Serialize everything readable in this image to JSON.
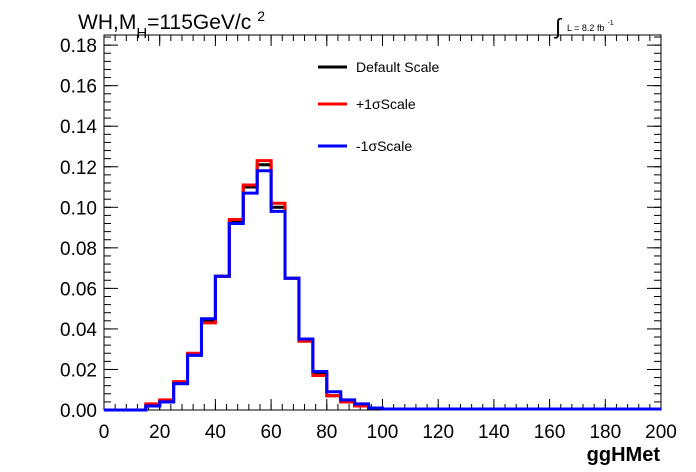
{
  "chart_data": {
    "type": "line",
    "title": {
      "main": "WH,M",
      "subscript": "H",
      "rest": "=115GeV/c",
      "superscript": "2"
    },
    "luminosity": {
      "integral_symbol": "∫",
      "text": "L = 8.2 fb",
      "exponent": "-1"
    },
    "xlabel": "ggHMet",
    "xlim": [
      0,
      200
    ],
    "ylim": [
      0,
      0.185
    ],
    "x_ticks": [
      "0",
      "20",
      "40",
      "60",
      "80",
      "100",
      "120",
      "140",
      "160",
      "180",
      "200"
    ],
    "y_ticks": [
      "0.00",
      "0.02",
      "0.04",
      "0.06",
      "0.08",
      "0.10",
      "0.12",
      "0.14",
      "0.16",
      "0.18"
    ],
    "bin_edges": [
      0,
      5,
      10,
      15,
      20,
      25,
      30,
      35,
      40,
      45,
      50,
      55,
      60,
      65,
      70,
      75,
      80,
      85,
      90,
      95,
      100,
      200
    ],
    "legend_position": "top-right",
    "series": [
      {
        "name": "Default Scale",
        "color": "#000000",
        "values": [
          0,
          0,
          0,
          0.002,
          0.004,
          0.013,
          0.027,
          0.044,
          0.066,
          0.093,
          0.11,
          0.121,
          0.1,
          0.065,
          0.034,
          0.018,
          0.007,
          0.004,
          0.002,
          0.001,
          0.0005
        ]
      },
      {
        "name": "+1σScale",
        "color": "#ff0000",
        "values": [
          0,
          0,
          0,
          0.003,
          0.005,
          0.014,
          0.028,
          0.043,
          0.066,
          0.094,
          0.111,
          0.123,
          0.102,
          0.065,
          0.034,
          0.017,
          0.007,
          0.004,
          0.002,
          0.001,
          0.0005
        ]
      },
      {
        "name": "-1σScale",
        "color": "#0000ff",
        "values": [
          0,
          0,
          0,
          0.002,
          0.004,
          0.013,
          0.027,
          0.045,
          0.066,
          0.092,
          0.107,
          0.118,
          0.098,
          0.065,
          0.035,
          0.019,
          0.009,
          0.005,
          0.003,
          0.001,
          0.0005
        ]
      }
    ]
  }
}
